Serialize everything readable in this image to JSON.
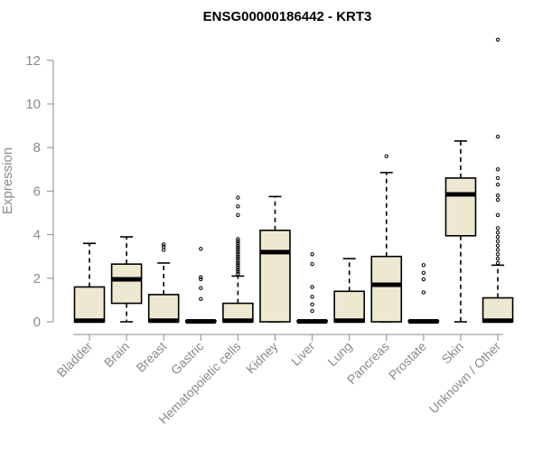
{
  "chart_data": {
    "type": "boxplot",
    "title": "ENSG00000186442 - KRT3",
    "ylabel": "Expression",
    "xlabel": "",
    "ylim": [
      0,
      12.6
    ],
    "yticks": [
      0,
      2,
      4,
      6,
      8,
      10,
      12
    ],
    "grid": false,
    "colors": {
      "box_fill": "#ede8d0",
      "box_stroke": "#000000",
      "median": "#000000",
      "axis": "#8a8a8a"
    },
    "categories": [
      "Bladder",
      "Brain",
      "Breast",
      "Gastric",
      "Hematopoietic cells",
      "Kidney",
      "Liver",
      "Lung",
      "Pancreas",
      "Prostate",
      "Skin",
      "Unknown / Other"
    ],
    "boxes": [
      {
        "q1": 0.0,
        "median": 0.05,
        "q3": 1.6,
        "whisker_low": 0.0,
        "whisker_high": 3.6,
        "outliers": []
      },
      {
        "q1": 0.85,
        "median": 1.95,
        "q3": 2.65,
        "whisker_low": 0.0,
        "whisker_high": 3.9,
        "outliers": []
      },
      {
        "q1": 0.0,
        "median": 0.05,
        "q3": 1.25,
        "whisker_low": 0.0,
        "whisker_high": 2.7,
        "outliers": [
          3.3,
          3.45,
          3.55
        ]
      },
      {
        "q1": 0.0,
        "median": 0.02,
        "q3": 0.05,
        "whisker_low": 0.0,
        "whisker_high": 0.05,
        "outliers": [
          1.05,
          1.55,
          1.95,
          2.05,
          3.35
        ]
      },
      {
        "q1": 0.0,
        "median": 0.05,
        "q3": 0.85,
        "whisker_low": 0.0,
        "whisker_high": 2.1,
        "outliers": [
          2.2,
          2.3,
          2.4,
          2.5,
          2.6,
          2.7,
          2.8,
          2.9,
          3.0,
          3.1,
          3.2,
          3.3,
          3.4,
          3.5,
          3.6,
          3.7,
          3.8,
          4.9,
          5.3,
          5.7
        ]
      },
      {
        "q1": 0.0,
        "median": 3.2,
        "q3": 4.2,
        "whisker_low": 0.0,
        "whisker_high": 5.75,
        "outliers": []
      },
      {
        "q1": 0.0,
        "median": 0.02,
        "q3": 0.05,
        "whisker_low": 0.0,
        "whisker_high": 0.05,
        "outliers": [
          0.5,
          0.8,
          1.15,
          1.6,
          2.65,
          3.1
        ]
      },
      {
        "q1": 0.0,
        "median": 0.05,
        "q3": 1.4,
        "whisker_low": 0.0,
        "whisker_high": 2.9,
        "outliers": []
      },
      {
        "q1": 0.0,
        "median": 1.7,
        "q3": 3.0,
        "whisker_low": 0.0,
        "whisker_high": 6.85,
        "outliers": [
          7.6
        ]
      },
      {
        "q1": 0.0,
        "median": 0.02,
        "q3": 0.05,
        "whisker_low": 0.0,
        "whisker_high": 0.05,
        "outliers": [
          1.35,
          1.95,
          2.25,
          2.6
        ]
      },
      {
        "q1": 3.95,
        "median": 5.85,
        "q3": 6.6,
        "whisker_low": 0.0,
        "whisker_high": 8.3,
        "outliers": []
      },
      {
        "q1": 0.0,
        "median": 0.05,
        "q3": 1.1,
        "whisker_low": 0.0,
        "whisker_high": 2.6,
        "outliers": [
          2.7,
          2.9,
          3.1,
          3.3,
          3.5,
          3.7,
          3.9,
          4.1,
          4.3,
          4.9,
          5.6,
          5.8,
          6.3,
          6.6,
          7.0,
          8.5,
          12.95
        ]
      }
    ]
  }
}
